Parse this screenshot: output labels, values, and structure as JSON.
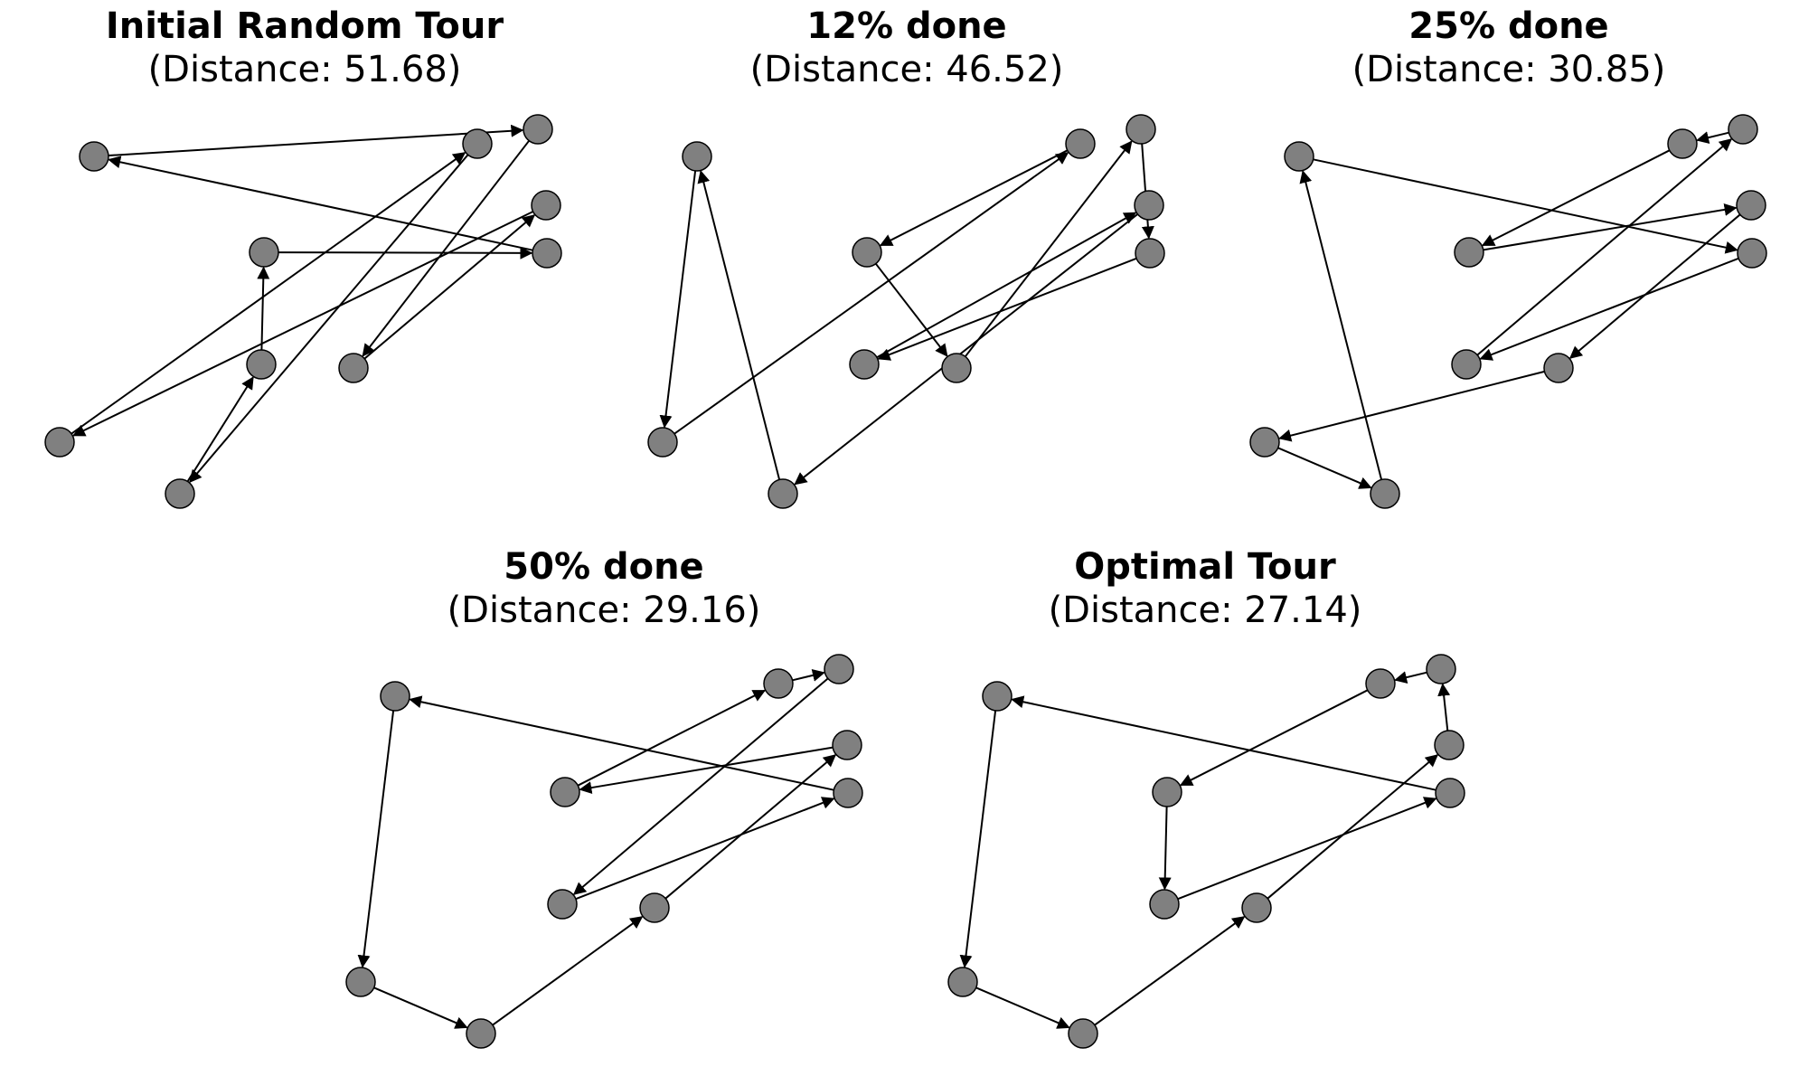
{
  "panels": [
    {
      "title": "Initial Random Tour",
      "subtitle": "(Distance: 51.68)",
      "node_ids": [
        1,
        2,
        3,
        4,
        5,
        6,
        7,
        8,
        9,
        10
      ],
      "tour": [
        1,
        5,
        8,
        6,
        9,
        4,
        10,
        3,
        2,
        7,
        1
      ]
    },
    {
      "title": "12% done",
      "subtitle": "(Distance: 46.52)",
      "node_ids": [
        1,
        2,
        3,
        4,
        5,
        6,
        7,
        8,
        9,
        10
      ],
      "tour": [
        1,
        9,
        4,
        2,
        8,
        5,
        7,
        3,
        6,
        10,
        1
      ]
    },
    {
      "title": "25% done",
      "subtitle": "(Distance: 30.85)",
      "node_ids": [
        1,
        2,
        3,
        4,
        5,
        6,
        7,
        8,
        9,
        10
      ],
      "tour": [
        1,
        7,
        3,
        5,
        4,
        2,
        6,
        8,
        9,
        10,
        1
      ]
    },
    {
      "title": "50% done",
      "subtitle": "(Distance: 29.16)",
      "node_ids": [
        1,
        2,
        3,
        4,
        5,
        6,
        7,
        8,
        9,
        10
      ],
      "tour": [
        1,
        9,
        10,
        8,
        6,
        2,
        4,
        5,
        3,
        7,
        1
      ]
    },
    {
      "title": "Optimal Tour",
      "subtitle": "(Distance: 27.14)",
      "node_ids": [
        1,
        2,
        3,
        4,
        5,
        6,
        7,
        8,
        9,
        10
      ],
      "tour": [
        1,
        9,
        10,
        8,
        6,
        5,
        4,
        2,
        3,
        7,
        1
      ]
    }
  ],
  "colors": {
    "node_fill": "#808080",
    "node_stroke": "#000000",
    "edge": "#000000",
    "background": "#ffffff"
  }
}
